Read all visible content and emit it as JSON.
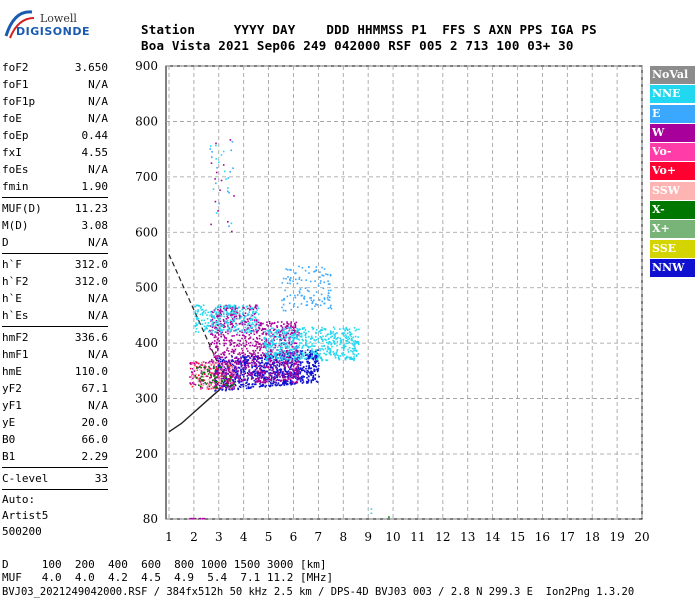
{
  "logo": {
    "line1": "Lowell",
    "line2": "DIGISONDE"
  },
  "header": {
    "line1": "Station     YYYY DAY    DDD HHMMSS P1  FFS S AXN PPS IGA PS",
    "line2": "Boa Vista 2021 Sep06 249 042000 RSF 005 2 713 100 03+ 30"
  },
  "params_group1": [
    {
      "label": "foF2",
      "value": "3.650"
    },
    {
      "label": "foF1",
      "value": "N/A"
    },
    {
      "label": "foF1p",
      "value": "N/A"
    },
    {
      "label": "foE",
      "value": "N/A"
    },
    {
      "label": "foEp",
      "value": "0.44"
    },
    {
      "label": "fxI",
      "value": "4.55"
    },
    {
      "label": "foEs",
      "value": "N/A"
    },
    {
      "label": "fmin",
      "value": "1.90"
    }
  ],
  "params_group2": [
    {
      "label": "MUF(D)",
      "value": "11.23"
    },
    {
      "label": "M(D)",
      "value": "3.08"
    },
    {
      "label": "D",
      "value": "N/A"
    }
  ],
  "params_group3": [
    {
      "label": "h`F",
      "value": "312.0"
    },
    {
      "label": "h`F2",
      "value": "312.0"
    },
    {
      "label": "h`E",
      "value": "N/A"
    },
    {
      "label": "h`Es",
      "value": "N/A"
    }
  ],
  "params_group4": [
    {
      "label": "hmF2",
      "value": "336.6"
    },
    {
      "label": "hmF1",
      "value": "N/A"
    },
    {
      "label": "hmE",
      "value": "110.0"
    },
    {
      "label": "yF2",
      "value": "67.1"
    },
    {
      "label": "yF1",
      "value": "N/A"
    },
    {
      "label": "yE",
      "value": "20.0"
    },
    {
      "label": "B0",
      "value": "66.0"
    },
    {
      "label": "B1",
      "value": "2.29"
    }
  ],
  "clevel": {
    "label": "C-level",
    "value": "33"
  },
  "auto": {
    "line1": "Auto:",
    "line2": "Artist5",
    "line3": "500200"
  },
  "legend": [
    {
      "label": "NoVal",
      "color": "#8c8c8c"
    },
    {
      "label": "NNE",
      "color": "#22d8f0"
    },
    {
      "label": "E",
      "color": "#3aa8ff"
    },
    {
      "label": "W",
      "color": "#a8009a"
    },
    {
      "label": "Vo-",
      "color": "#ff3ca8"
    },
    {
      "label": "Vo+",
      "color": "#ff0030"
    },
    {
      "label": "SSW",
      "color": "#ffb4b4"
    },
    {
      "label": "X-",
      "color": "#007800"
    },
    {
      "label": "X+",
      "color": "#78b478"
    },
    {
      "label": "SSE",
      "color": "#d4d400"
    },
    {
      "label": "NNW",
      "color": "#1010d0"
    }
  ],
  "bottom": {
    "row1": "D     100  200  400  600  800 1000 1500 3000 [km]",
    "row2": "MUF   4.0  4.0  4.2  4.5  4.9  5.4  7.1 11.2 [MHz]",
    "row3": "BVJ03_2021249042000.RSF / 384fx512h 50 kHz 2.5 km / DPS-4D BVJ03 003 / 2.8 N 299.3 E  Ion2Png 1.3.20"
  },
  "chart_data": {
    "type": "scatter",
    "xlim": [
      1,
      20
    ],
    "ylim": [
      80,
      900
    ],
    "x_ticks": [
      "1",
      "2",
      "3",
      "4",
      "5",
      "6",
      "7",
      "8",
      "9",
      "10",
      "11",
      "12",
      "13",
      "14",
      "15",
      "16",
      "17",
      "18",
      "19",
      "20"
    ],
    "y_ticks": [
      "80",
      "200",
      "300",
      "400",
      "500",
      "600",
      "700",
      "800",
      "900"
    ],
    "y_tick_values": [
      80,
      200,
      300,
      400,
      500,
      600,
      700,
      800,
      900
    ],
    "grid": true,
    "profile_curve": [
      [
        1.0,
        560
      ],
      [
        1.3,
        530
      ],
      [
        1.6,
        500
      ],
      [
        2.0,
        460
      ],
      [
        2.3,
        430
      ],
      [
        2.6,
        400
      ],
      [
        2.9,
        370
      ],
      [
        3.2,
        345
      ],
      [
        3.4,
        330
      ],
      [
        3.5,
        322
      ]
    ],
    "trace_curve": [
      [
        1.0,
        240
      ],
      [
        1.5,
        255
      ],
      [
        2.0,
        275
      ],
      [
        2.5,
        295
      ],
      [
        3.0,
        315
      ],
      [
        3.3,
        328
      ],
      [
        3.5,
        336
      ]
    ]
  }
}
